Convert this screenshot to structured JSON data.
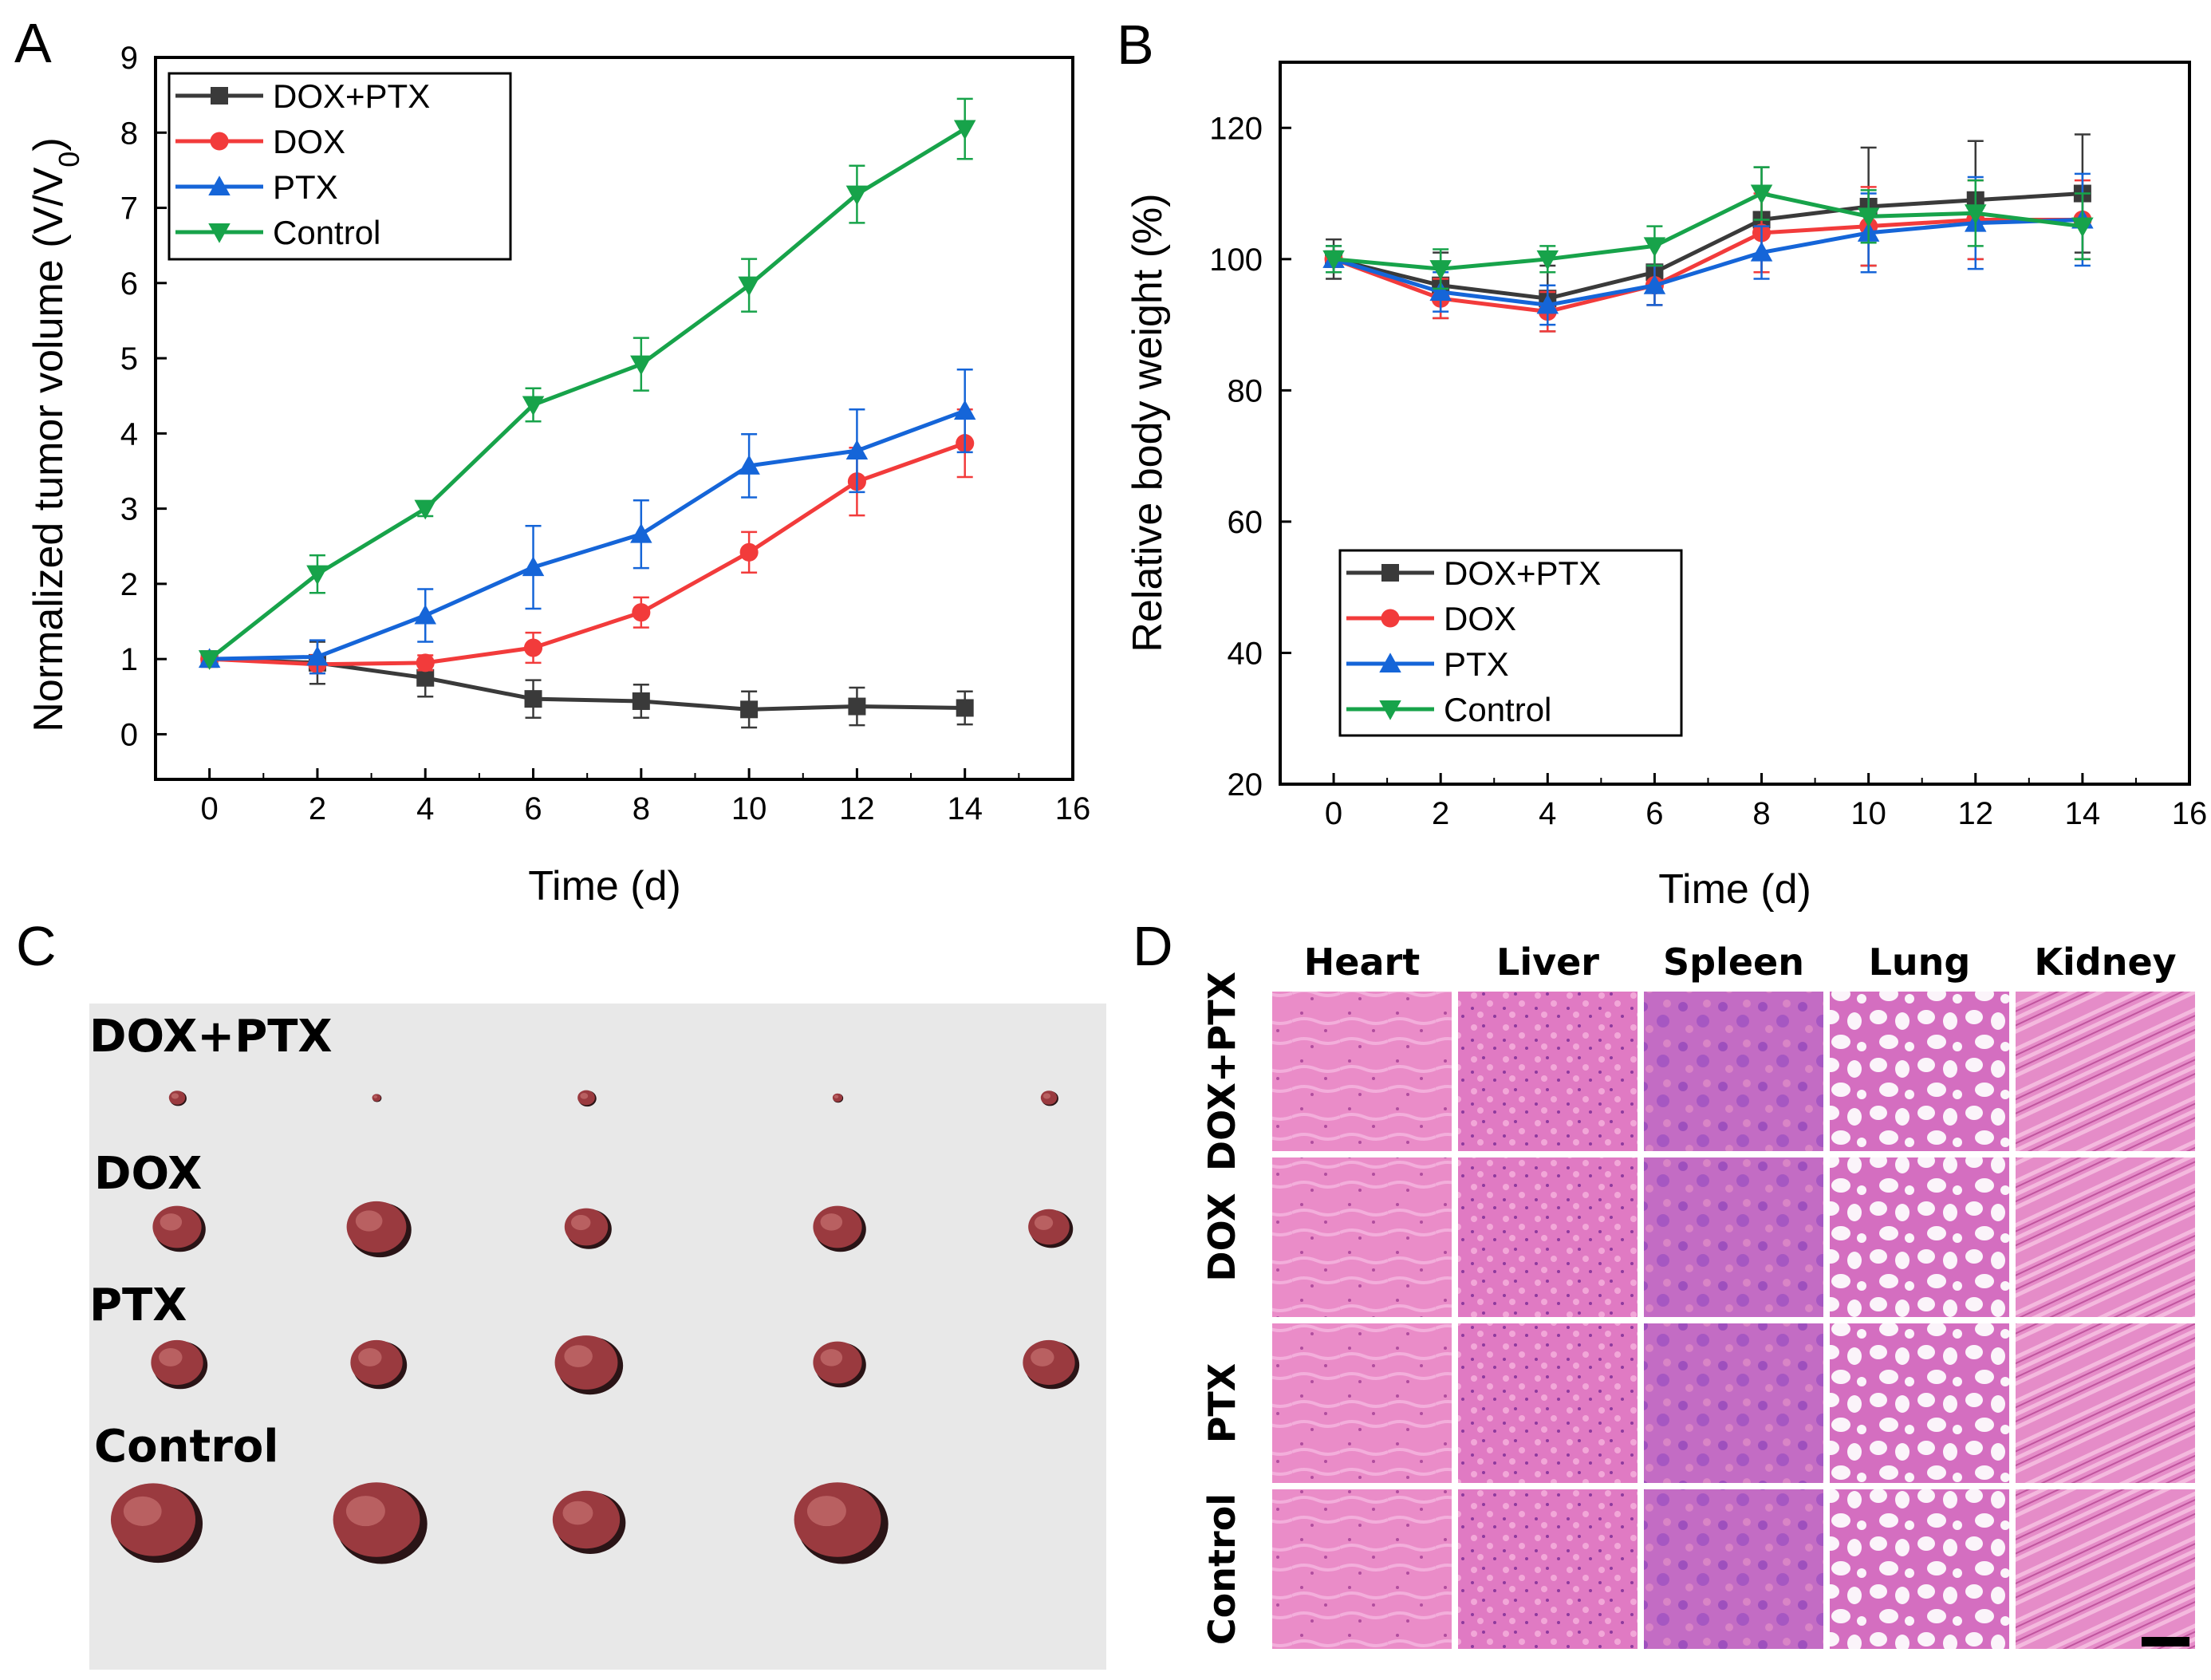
{
  "panel_letters": {
    "a": "A",
    "b": "B",
    "c": "C",
    "d": "D"
  },
  "colors": {
    "dox_ptx": "#3a3a3a",
    "dox": "#f23b3b",
    "ptx": "#1565d8",
    "control": "#17a34a",
    "photo_bg": "#e9e9e9",
    "tumor": "#9a3a3f",
    "he_pink": "#e27fbe",
    "he_purple": "#a85bc0"
  },
  "chart_data": [
    {
      "panel": "A",
      "type": "line",
      "xlabel": "Time (d)",
      "ylabel_main": "Normalized tumor volume (V/V",
      "ylabel_sub": "0",
      "ylabel_close": ")",
      "xlim": [
        -1,
        16
      ],
      "ylim": [
        -0.6,
        9
      ],
      "xticks": [
        0,
        2,
        4,
        6,
        8,
        10,
        12,
        14,
        16
      ],
      "yticks": [
        0,
        1,
        2,
        3,
        4,
        5,
        6,
        7,
        8,
        9
      ],
      "x": [
        0,
        2,
        4,
        6,
        8,
        10,
        12,
        14
      ],
      "legend_position": "top-left",
      "series": [
        {
          "name": "DOX+PTX",
          "marker": "square",
          "color_key": "dox_ptx",
          "values": [
            1.0,
            0.95,
            0.75,
            0.47,
            0.44,
            0.33,
            0.37,
            0.35
          ],
          "errors": [
            0.0,
            0.28,
            0.25,
            0.25,
            0.22,
            0.24,
            0.25,
            0.22
          ]
        },
        {
          "name": "DOX",
          "marker": "circle",
          "color_key": "dox",
          "values": [
            1.0,
            0.93,
            0.95,
            1.15,
            1.62,
            2.42,
            3.36,
            3.87
          ],
          "errors": [
            0.0,
            0.12,
            0.1,
            0.2,
            0.2,
            0.27,
            0.45,
            0.45
          ]
        },
        {
          "name": "PTX",
          "marker": "triangle-up",
          "color_key": "ptx",
          "values": [
            1.0,
            1.03,
            1.58,
            2.22,
            2.66,
            3.57,
            3.77,
            4.3
          ],
          "errors": [
            0.0,
            0.22,
            0.35,
            0.55,
            0.45,
            0.42,
            0.55,
            0.55
          ]
        },
        {
          "name": "Control",
          "marker": "triangle-down",
          "color_key": "control",
          "values": [
            1.0,
            2.13,
            3.0,
            4.38,
            4.92,
            5.97,
            7.18,
            8.05
          ],
          "errors": [
            0.0,
            0.25,
            0.1,
            0.22,
            0.35,
            0.35,
            0.38,
            0.4
          ]
        }
      ]
    },
    {
      "panel": "B",
      "type": "line",
      "xlabel": "Time (d)",
      "ylabel": "Relative body weight (%)",
      "xlim": [
        -1,
        16
      ],
      "ylim": [
        20,
        130
      ],
      "xticks": [
        0,
        2,
        4,
        6,
        8,
        10,
        12,
        14,
        16
      ],
      "yticks": [
        20,
        40,
        60,
        80,
        100,
        120
      ],
      "x": [
        0,
        2,
        4,
        6,
        8,
        10,
        12,
        14
      ],
      "legend_position": "bottom-left",
      "series": [
        {
          "name": "DOX+PTX",
          "marker": "square",
          "color_key": "dox_ptx",
          "values": [
            100,
            96,
            94,
            98,
            106,
            108,
            109,
            110
          ],
          "errors": [
            3,
            5,
            5,
            5,
            8,
            9,
            9,
            9
          ]
        },
        {
          "name": "DOX",
          "marker": "circle",
          "color_key": "dox",
          "values": [
            100,
            94,
            92,
            96,
            104,
            105,
            106,
            106
          ],
          "errors": [
            2,
            3,
            3,
            3,
            6,
            6,
            6,
            6
          ]
        },
        {
          "name": "PTX",
          "marker": "triangle-up",
          "color_key": "ptx",
          "values": [
            100,
            95,
            93,
            96,
            101,
            104,
            105.5,
            106
          ],
          "errors": [
            2,
            3,
            3,
            3,
            4,
            6,
            7,
            7
          ]
        },
        {
          "name": "Control",
          "marker": "triangle-down",
          "color_key": "control",
          "values": [
            100,
            98.5,
            100,
            102,
            110,
            106.5,
            107,
            105
          ],
          "errors": [
            2,
            3,
            2,
            3,
            4,
            4,
            5,
            5
          ]
        }
      ]
    }
  ],
  "panel_c": {
    "group_labels": [
      "DOX+PTX",
      "DOX",
      "PTX",
      "Control"
    ],
    "tumor_rows": [
      {
        "group": "DOX+PTX",
        "sizes": [
          0.15,
          0.08,
          0.16,
          0.09,
          0.15
        ]
      },
      {
        "group": "DOX",
        "sizes": [
          0.45,
          0.55,
          0.4,
          0.45,
          0.38
        ]
      },
      {
        "group": "PTX",
        "sizes": [
          0.48,
          0.48,
          0.58,
          0.45,
          0.48
        ]
      },
      {
        "group": "Control",
        "sizes": [
          0.78,
          0.8,
          0.62,
          0.8,
          0
        ]
      }
    ]
  },
  "panel_d": {
    "organs": [
      "Heart",
      "Liver",
      "Spleen",
      "Lung",
      "Kidney"
    ],
    "groups": [
      "DOX+PTX",
      "DOX",
      "PTX",
      "Control"
    ]
  }
}
